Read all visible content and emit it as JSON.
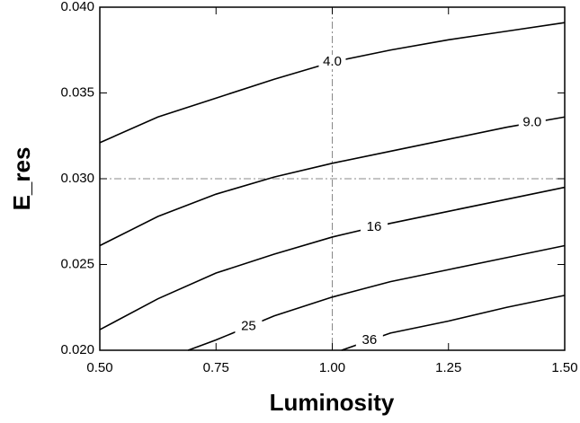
{
  "chart_data": {
    "type": "line",
    "xlabel": "Luminosity",
    "ylabel": "E_res",
    "xlim": [
      0.5,
      1.5
    ],
    "ylim": [
      0.02,
      0.04
    ],
    "xticks": [
      {
        "value": 0.5,
        "label": "0.50"
      },
      {
        "value": 0.75,
        "label": "0.75"
      },
      {
        "value": 1.0,
        "label": "1.00"
      },
      {
        "value": 1.25,
        "label": "1.25"
      },
      {
        "value": 1.5,
        "label": "1.50"
      }
    ],
    "yticks": [
      {
        "value": 0.02,
        "label": "0.020"
      },
      {
        "value": 0.025,
        "label": "0.025"
      },
      {
        "value": 0.03,
        "label": "0.030"
      },
      {
        "value": 0.035,
        "label": "0.035"
      },
      {
        "value": 0.04,
        "label": "0.040"
      }
    ],
    "reference_lines": {
      "x": 1.0,
      "y": 0.03,
      "color": "#888888"
    },
    "series": [
      {
        "name": "4.0",
        "color": "#000000",
        "x": [
          0.5,
          0.625,
          0.75,
          0.875,
          1.0,
          1.125,
          1.25,
          1.375,
          1.5
        ],
        "values": [
          0.0321,
          0.0336,
          0.0347,
          0.0358,
          0.0368,
          0.0375,
          0.0381,
          0.0386,
          0.0391
        ]
      },
      {
        "name": "9.0",
        "color": "#000000",
        "x": [
          0.5,
          0.625,
          0.75,
          0.875,
          1.0,
          1.125,
          1.25,
          1.375,
          1.5
        ],
        "values": [
          0.0261,
          0.0278,
          0.0291,
          0.0301,
          0.0309,
          0.0316,
          0.0323,
          0.033,
          0.0336
        ]
      },
      {
        "name": "16",
        "color": "#000000",
        "x": [
          0.5,
          0.625,
          0.75,
          0.875,
          1.0,
          1.125,
          1.25,
          1.375,
          1.5
        ],
        "values": [
          0.0212,
          0.023,
          0.0245,
          0.0256,
          0.0266,
          0.0274,
          0.0281,
          0.0288,
          0.0295
        ]
      },
      {
        "name": "25",
        "color": "#000000",
        "x": [
          0.69,
          0.75,
          0.875,
          1.0,
          1.125,
          1.25,
          1.375,
          1.5
        ],
        "values": [
          0.02,
          0.0206,
          0.022,
          0.0231,
          0.024,
          0.0247,
          0.0254,
          0.0261
        ]
      },
      {
        "name": "36",
        "color": "#000000",
        "x": [
          1.02,
          1.125,
          1.25,
          1.375,
          1.5
        ],
        "values": [
          0.02,
          0.021,
          0.0217,
          0.0225,
          0.0232
        ]
      }
    ]
  }
}
